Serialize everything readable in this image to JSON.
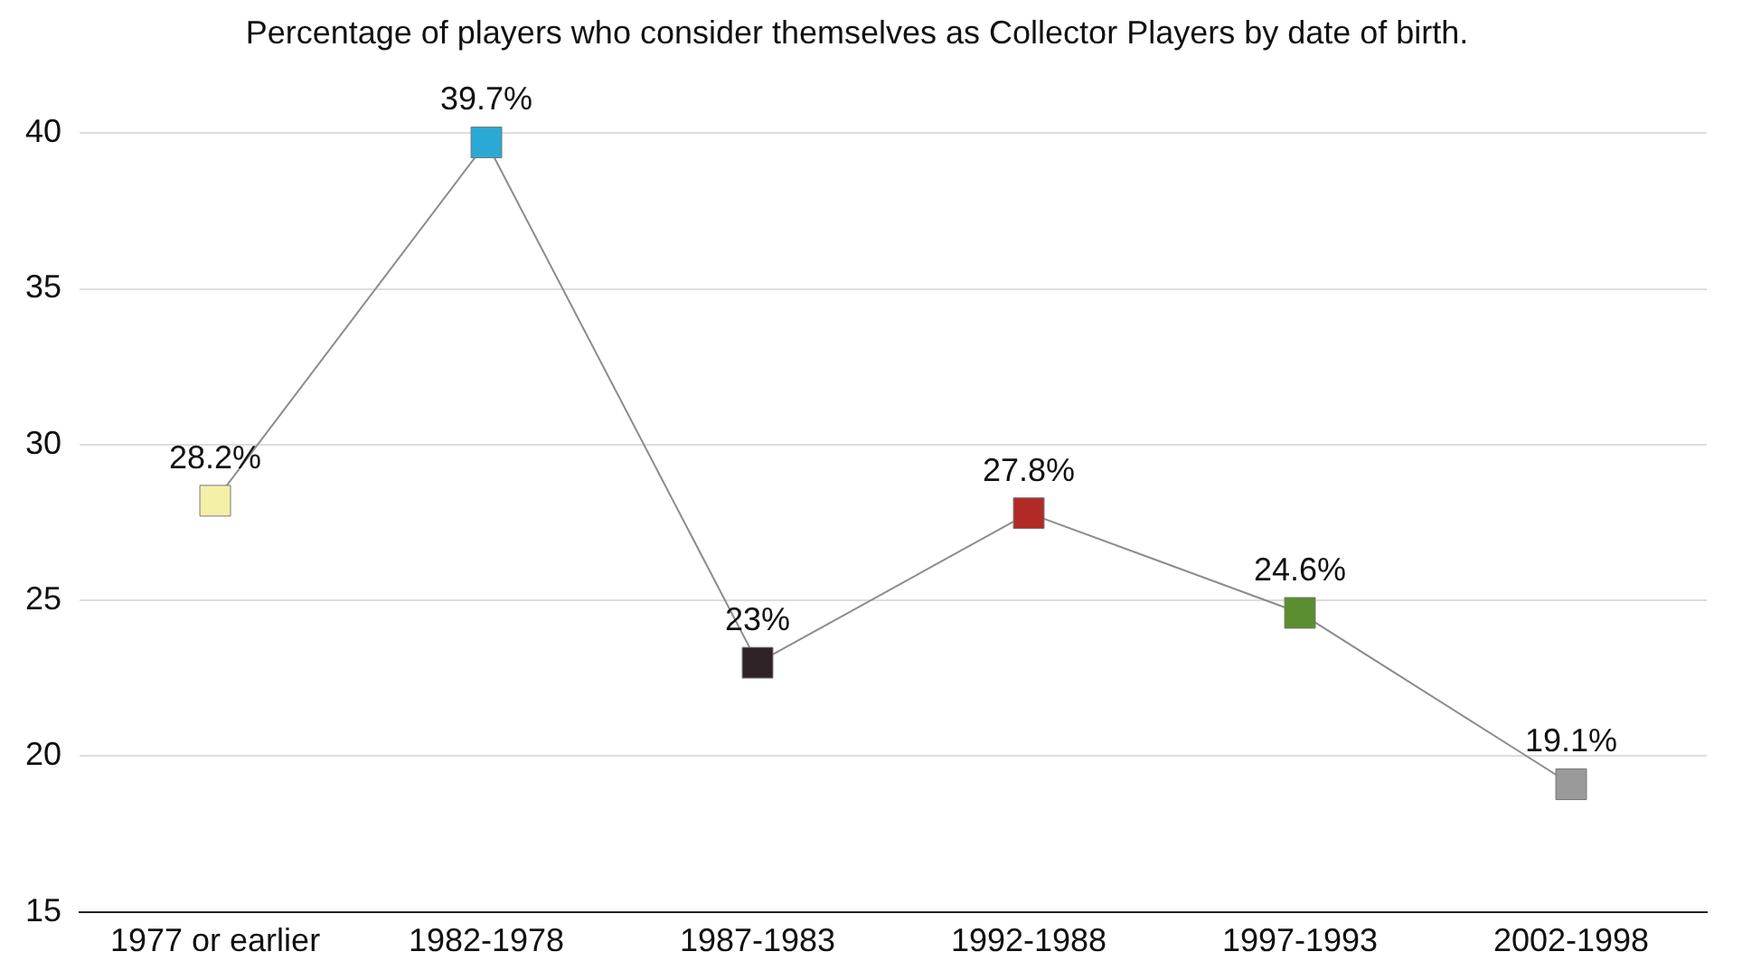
{
  "chart_data": {
    "type": "line",
    "title": "Percentage of players who consider themselves as Collector Players by date of birth.",
    "categories": [
      "1977 or earlier",
      "1982-1978",
      "1987-1983",
      "1992-1988",
      "1997-1993",
      "2002-1998"
    ],
    "values": [
      28.2,
      39.7,
      23,
      27.8,
      24.6,
      19.1
    ],
    "value_labels": [
      "28.2%",
      "39.7%",
      "23%",
      "27.8%",
      "24.6%",
      "19.1%"
    ],
    "color": "#8c8c8c",
    "colors": [
      "#f5f0a8",
      "#2aa9d6",
      "#2e2326",
      "#b22a26",
      "#5a8e2e",
      "#9a9a9a"
    ],
    "ylim": [
      15,
      40
    ],
    "yticks": [
      15,
      20,
      25,
      30,
      35,
      40
    ],
    "grid": "y",
    "marker": "square",
    "line_style": "solid",
    "legend": false
  }
}
